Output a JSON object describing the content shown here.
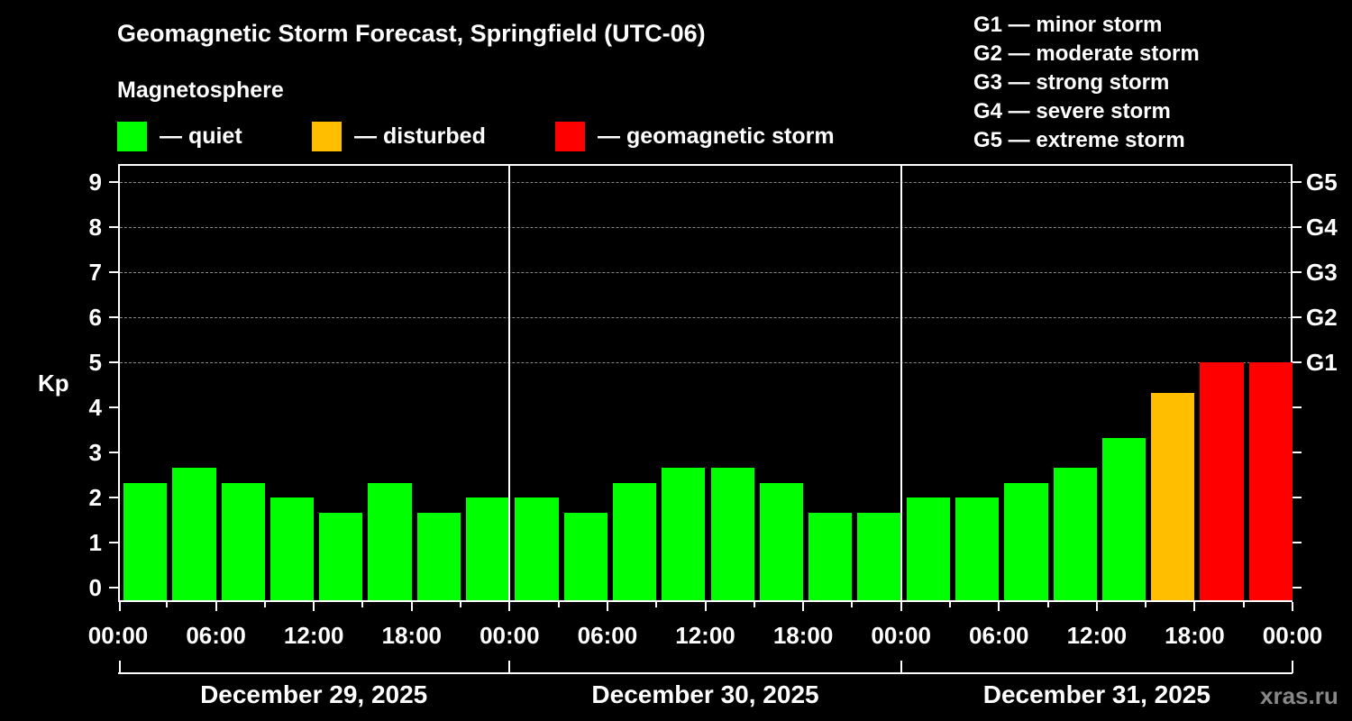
{
  "title": "Geomagnetic Storm Forecast, Springfield (UTC-06)",
  "subtitle": "Magnetosphere",
  "legend": [
    {
      "label": "— quiet",
      "color": "#00ff00"
    },
    {
      "label": "— disturbed",
      "color": "#ffbf00"
    },
    {
      "label": "— geomagnetic storm",
      "color": "#ff0000"
    }
  ],
  "g_scale_legend": [
    "G1 — minor storm",
    "G2 — moderate storm",
    "G3 — strong storm",
    "G4 — severe storm",
    "G5 — extreme storm"
  ],
  "watermark": "xras.ru",
  "chart_data": {
    "type": "bar",
    "title": "Geomagnetic Storm Forecast, Springfield (UTC-06)",
    "xlabel": "",
    "ylabel": "Kp",
    "ylim": [
      0,
      9
    ],
    "yticks": [
      "0",
      "1",
      "2",
      "3",
      "4",
      "5",
      "6",
      "7",
      "8",
      "9"
    ],
    "right_axis_labels": [
      {
        "kp": 5,
        "label": "G1"
      },
      {
        "kp": 6,
        "label": "G2"
      },
      {
        "kp": 7,
        "label": "G3"
      },
      {
        "kp": 8,
        "label": "G4"
      },
      {
        "kp": 9,
        "label": "G5"
      }
    ],
    "grid": "horizontal dashed at Kp 5-9",
    "x_tick_labels": [
      "00:00",
      "06:00",
      "12:00",
      "18:00",
      "00:00",
      "06:00",
      "12:00",
      "18:00",
      "00:00",
      "06:00",
      "12:00",
      "18:00",
      "00:00"
    ],
    "days": [
      "December 29, 2025",
      "December 30, 2025",
      "December 31, 2025"
    ],
    "interval_hours": 3,
    "values": [
      2.33,
      2.67,
      2.33,
      2.0,
      1.67,
      2.33,
      1.67,
      2.0,
      2.0,
      1.67,
      2.33,
      2.67,
      2.67,
      2.33,
      1.67,
      1.67,
      2.0,
      2.0,
      2.33,
      2.67,
      3.33,
      4.33,
      5.0,
      5.0
    ],
    "status": [
      "quiet",
      "quiet",
      "quiet",
      "quiet",
      "quiet",
      "quiet",
      "quiet",
      "quiet",
      "quiet",
      "quiet",
      "quiet",
      "quiet",
      "quiet",
      "quiet",
      "quiet",
      "quiet",
      "quiet",
      "quiet",
      "quiet",
      "quiet",
      "quiet",
      "disturbed",
      "storm",
      "storm"
    ],
    "colors": {
      "quiet": "#00ff00",
      "disturbed": "#ffbf00",
      "storm": "#ff0000"
    }
  }
}
